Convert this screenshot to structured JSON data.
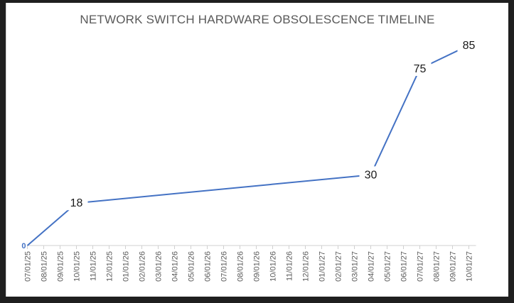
{
  "chart_data": {
    "type": "line",
    "title": "NETWORK SWITCH HARDWARE OBSOLESCENCE TIMELINE",
    "xlabel": "",
    "ylabel": "",
    "categories": [
      "07/01/25",
      "08/01/25",
      "09/01/25",
      "10/01/25",
      "11/01/25",
      "12/01/25",
      "01/01/26",
      "02/01/26",
      "03/01/26",
      "04/01/26",
      "05/01/26",
      "06/01/26",
      "07/01/26",
      "08/01/26",
      "09/01/26",
      "10/01/26",
      "11/01/26",
      "12/01/26",
      "01/01/27",
      "02/01/27",
      "03/01/27",
      "04/01/27",
      "05/01/27",
      "06/01/27",
      "07/01/27",
      "08/01/27",
      "09/01/27",
      "10/01/27"
    ],
    "points": [
      {
        "x": "07/01/25",
        "y": 0,
        "label": "0"
      },
      {
        "x": "10/01/25",
        "y": 18,
        "label": "18"
      },
      {
        "x": "04/01/27",
        "y": 30,
        "label": "30"
      },
      {
        "x": "07/01/27",
        "y": 75,
        "label": "75"
      },
      {
        "x": "10/01/27",
        "y": 85,
        "label": "85"
      }
    ],
    "ylim": [
      0,
      100
    ],
    "grid": false,
    "line_color": "#4472c4"
  }
}
